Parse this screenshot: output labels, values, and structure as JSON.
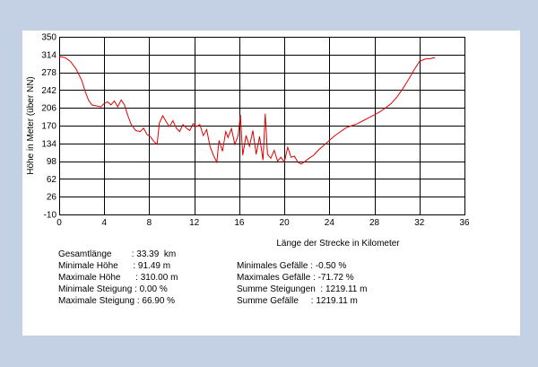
{
  "chart_data": {
    "type": "line",
    "title": "",
    "xlabel": "Länge der Strecke in Kilometer",
    "ylabel": "Höhe in Meter (über NN)",
    "xlim": [
      0,
      36
    ],
    "ylim": [
      -10,
      350
    ],
    "x_ticks": [
      "0",
      "4",
      "8",
      "12",
      "16",
      "20",
      "24",
      "28",
      "32",
      "36"
    ],
    "y_ticks": [
      "350",
      "314",
      "278",
      "242",
      "206",
      "170",
      "134",
      "98",
      "62",
      "26",
      "-10"
    ],
    "grid": true,
    "line_color": "#e00000",
    "series": [
      {
        "x": [
          0,
          0.5,
          1.0,
          1.5,
          2.0,
          2.3,
          2.6,
          2.9,
          3.3,
          3.7,
          4.0,
          4.3,
          4.6,
          4.9,
          5.2,
          5.5,
          5.8,
          6.1,
          6.4,
          6.8,
          7.2,
          7.5,
          7.8,
          8.1,
          8.4,
          8.7,
          8.9,
          9.2,
          9.5,
          9.8,
          10.1,
          10.4,
          10.7,
          11.0,
          11.3,
          11.6,
          11.9,
          12.2,
          12.5,
          12.8,
          13.1,
          13.4,
          13.7,
          14.0,
          14.2,
          14.5,
          14.8,
          15.0,
          15.3,
          15.6,
          15.9,
          16.1,
          16.3,
          16.6,
          16.9,
          17.2,
          17.5,
          17.8,
          18.1,
          18.3,
          18.5,
          18.8,
          19.1,
          19.4,
          19.7,
          20.0,
          20.3,
          20.6,
          20.9,
          21.2,
          21.5,
          21.8,
          22.2,
          22.6,
          23.0,
          23.5,
          24.0,
          24.5,
          25.0,
          25.5,
          26.0,
          26.5,
          27.0,
          27.5,
          28.0,
          28.5,
          29.0,
          29.5,
          30.0,
          30.5,
          31.0,
          31.5,
          32.0,
          32.5,
          33.0,
          33.39
        ],
        "y": [
          310,
          308,
          300,
          285,
          262,
          240,
          222,
          212,
          210,
          208,
          215,
          218,
          212,
          220,
          208,
          222,
          212,
          190,
          172,
          160,
          158,
          165,
          152,
          148,
          138,
          132,
          175,
          190,
          178,
          168,
          180,
          165,
          158,
          172,
          165,
          160,
          174,
          168,
          172,
          150,
          162,
          128,
          110,
          96,
          140,
          118,
          158,
          146,
          164,
          132,
          150,
          192,
          110,
          150,
          128,
          160,
          112,
          148,
          100,
          194,
          112,
          104,
          120,
          98,
          106,
          96,
          126,
          106,
          108,
          96,
          92,
          97,
          104,
          110,
          120,
          130,
          140,
          150,
          158,
          166,
          170,
          174,
          180,
          186,
          192,
          198,
          206,
          215,
          228,
          244,
          262,
          282,
          300,
          305,
          306,
          308
        ]
      }
    ]
  },
  "stats": {
    "total_length": "Gesamtlänge        : 33.39  km",
    "min_height": "Minimale Höhe      : 91.49 m",
    "max_height": "Maximale Höhe      : 310.00 m",
    "min_climb": "Minimale Steigung : 0.00 %",
    "max_climb": "Maximale Steigung : 66.90 %",
    "min_descent": "Minimales Gefälle : -0.50 %",
    "max_descent": "Maximales Gefälle : -71.72 %",
    "sum_climbs": "Summe Steigungen  : 1219.11 m",
    "sum_descents": "Summe Gefälle     : 1219.11 m"
  }
}
